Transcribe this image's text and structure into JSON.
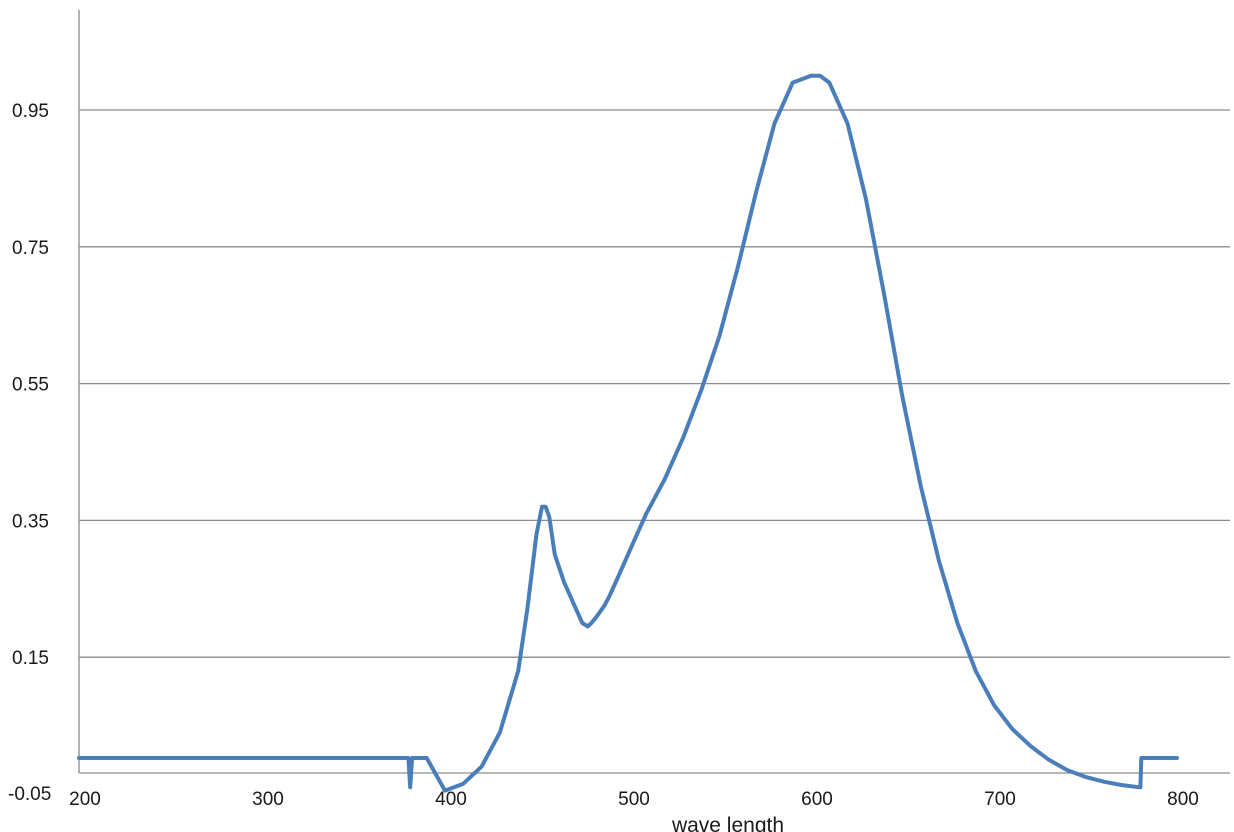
{
  "chart_data": {
    "type": "line",
    "title": "",
    "xlabel": "wave length",
    "ylabel": "",
    "xlim": [
      200,
      800
    ],
    "ylim": [
      -0.05,
      1.05
    ],
    "xticks": [
      200,
      300,
      400,
      500,
      600,
      700,
      800
    ],
    "xtick_labels": [
      "200",
      "300",
      "400",
      "500",
      "600",
      "700",
      "800"
    ],
    "yticks": [
      -0.05,
      0.15,
      0.35,
      0.55,
      0.75,
      0.95
    ],
    "ytick_labels": [
      "-0.05",
      "0.15",
      "0.35",
      "0.55",
      "0.75",
      "0.95"
    ],
    "grid": "horizontal",
    "legend": "none",
    "series": [
      {
        "color": "#4a7ebb",
        "x": [
          200,
          300,
          380,
          381,
          382,
          390,
          400,
          410,
          420,
          430,
          440,
          445,
          450,
          453,
          455,
          457,
          460,
          465,
          470,
          475,
          478,
          480,
          483,
          487,
          490,
          495,
          500,
          505,
          510,
          520,
          530,
          540,
          550,
          560,
          570,
          580,
          590,
          600,
          605,
          610,
          620,
          630,
          640,
          650,
          660,
          670,
          680,
          690,
          700,
          710,
          720,
          730,
          740,
          750,
          760,
          770,
          779,
          780,
          780.5,
          790,
          800
        ],
        "y": [
          -0.05,
          -0.05,
          -0.05,
          -0.04,
          -0.05,
          -0.05,
          -0.045,
          -0.035,
          -0.01,
          0.04,
          0.13,
          0.22,
          0.33,
          0.37,
          0.37,
          0.355,
          0.3,
          0.26,
          0.23,
          0.2,
          0.195,
          0.2,
          0.21,
          0.225,
          0.24,
          0.27,
          0.3,
          0.33,
          0.36,
          0.41,
          0.47,
          0.54,
          0.62,
          0.72,
          0.83,
          0.93,
          0.99,
          1.0,
          1.0,
          0.99,
          0.93,
          0.82,
          0.68,
          0.53,
          0.4,
          0.29,
          0.2,
          0.13,
          0.08,
          0.045,
          0.02,
          0.0,
          -0.015,
          -0.025,
          -0.032,
          -0.037,
          -0.04,
          -0.04,
          -0.05,
          -0.05,
          -0.05
        ]
      }
    ]
  }
}
